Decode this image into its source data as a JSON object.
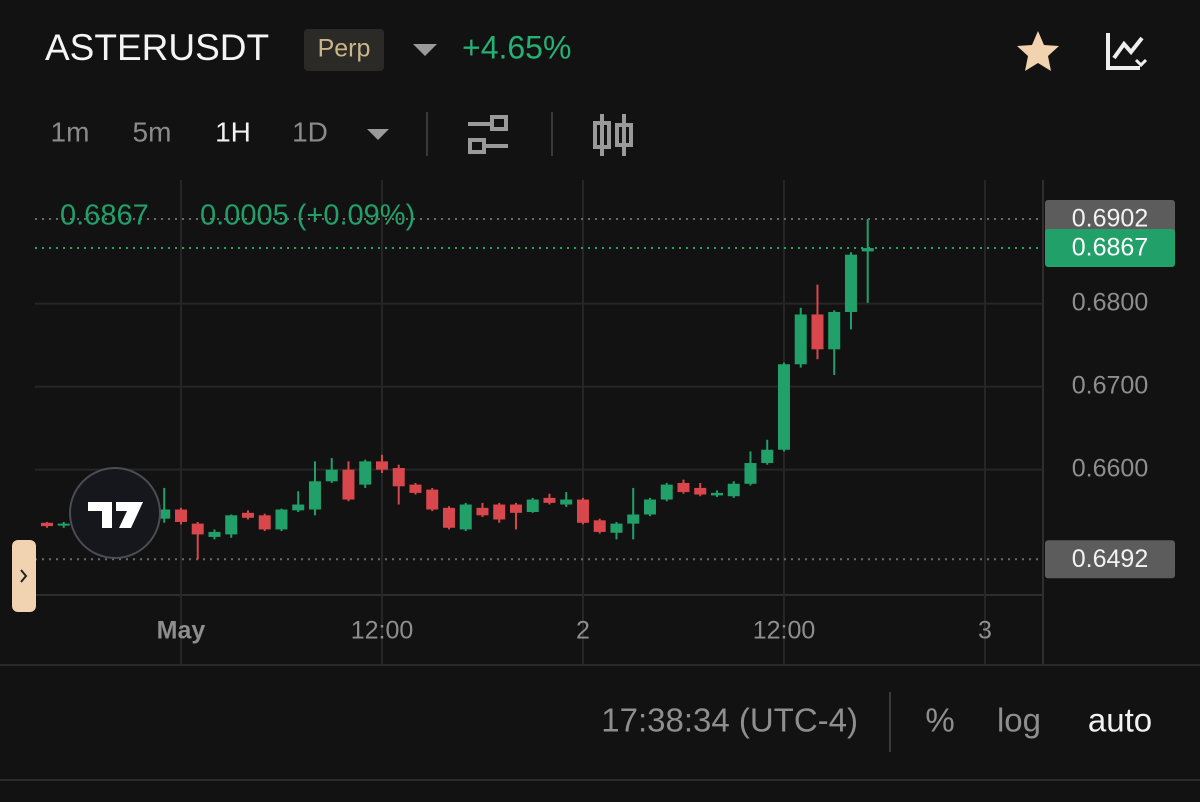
{
  "header": {
    "symbol": "ASTERUSDT",
    "badge": "Perp",
    "change": "+4.65%"
  },
  "intervals": [
    "1m",
    "5m",
    "1H",
    "1D"
  ],
  "chart_data": {
    "type": "candlestick",
    "legend_change": "0.0005 (+0.09%)",
    "categories": [
      null,
      null,
      null,
      null,
      null,
      null,
      null,
      null,
      "May",
      null,
      null,
      null,
      null,
      null,
      null,
      null,
      null,
      null,
      null,
      null,
      "12:00",
      null,
      null,
      null,
      null,
      null,
      null,
      null,
      null,
      null,
      null,
      null,
      "2",
      null,
      null,
      null,
      null,
      null,
      null,
      null,
      null,
      null,
      null,
      null,
      "12:00",
      null,
      null,
      null,
      null,
      null,
      null,
      null,
      null,
      null,
      null,
      null,
      "3",
      null,
      null,
      null
    ],
    "open": [
      0.6536,
      0.6534,
      0.6535,
      0.6538,
      0.654,
      0.6536,
      0.6538,
      0.6541,
      0.6552,
      0.6535,
      0.6519,
      0.6522,
      0.6548,
      0.6545,
      0.6528,
      0.6551,
      0.6552,
      0.6586,
      0.66,
      0.6582,
      0.661,
      0.6602,
      0.6582,
      0.6576,
      0.6554,
      0.6528,
      0.6554,
      0.6558,
      0.6558,
      0.6549,
      0.6566,
      0.6558,
      0.6564,
      0.6539,
      0.6524,
      0.6535,
      0.6546,
      0.6564,
      0.6584,
      0.6578,
      0.6569,
      0.6568,
      0.6583,
      0.6608,
      0.6624,
      0.6727,
      0.6787,
      0.6745,
      0.679,
      0.6863,
      null,
      null,
      null,
      null,
      null,
      null,
      null,
      null,
      null,
      null
    ],
    "high": [
      0.6537,
      0.6537,
      0.6541,
      0.6544,
      0.6543,
      0.6541,
      0.6545,
      0.6578,
      0.6554,
      0.6537,
      0.6528,
      0.6546,
      0.6551,
      0.6547,
      0.6553,
      0.6574,
      0.661,
      0.6614,
      0.661,
      0.6612,
      0.6618,
      0.6606,
      0.6584,
      0.6578,
      0.6556,
      0.656,
      0.656,
      0.656,
      0.656,
      0.6566,
      0.6571,
      0.6573,
      0.6566,
      0.6541,
      0.6537,
      0.6578,
      0.6566,
      0.6584,
      0.6588,
      0.6584,
      0.6575,
      0.6586,
      0.6622,
      0.6636,
      0.6729,
      0.6795,
      0.6823,
      0.6792,
      0.6862,
      0.6902,
      null,
      null,
      null,
      null,
      null,
      null,
      null,
      null,
      null,
      null
    ],
    "low": [
      0.653,
      0.653,
      0.6532,
      0.6535,
      0.6533,
      0.6532,
      0.6534,
      0.6536,
      0.6534,
      0.6492,
      0.6516,
      0.6518,
      0.654,
      0.6526,
      0.6526,
      0.6549,
      0.6545,
      0.6584,
      0.6562,
      0.6578,
      0.6596,
      0.6558,
      0.657,
      0.655,
      0.6528,
      0.6526,
      0.6543,
      0.6536,
      0.6528,
      0.6548,
      0.6558,
      0.6555,
      0.6534,
      0.6523,
      0.6516,
      0.6516,
      0.6544,
      0.6562,
      0.6571,
      0.6568,
      0.6567,
      0.6566,
      0.6581,
      0.6606,
      0.6622,
      0.6723,
      0.6733,
      0.6714,
      0.6769,
      0.6801,
      null,
      null,
      null,
      null,
      null,
      null,
      null,
      null,
      null,
      null
    ],
    "close": [
      0.6532,
      0.6535,
      0.6538,
      0.654,
      0.6536,
      0.6538,
      0.6541,
      0.6552,
      0.6537,
      0.6522,
      0.6525,
      0.6545,
      0.6542,
      0.6528,
      0.6552,
      0.6558,
      0.6586,
      0.66,
      0.6564,
      0.661,
      0.66,
      0.658,
      0.6572,
      0.6552,
      0.653,
      0.6558,
      0.6545,
      0.654,
      0.6548,
      0.6564,
      0.656,
      0.6564,
      0.6536,
      0.6525,
      0.6535,
      0.6546,
      0.6564,
      0.6582,
      0.6573,
      0.657,
      0.6572,
      0.6583,
      0.6608,
      0.6624,
      0.6727,
      0.6787,
      0.6745,
      0.679,
      0.6859,
      0.6867,
      null,
      null,
      null,
      null,
      null,
      null,
      null,
      null,
      null,
      null
    ],
    "up_color": "#21a06a",
    "down_color": "#d8474b",
    "ylim": [
      0.6449,
      0.6949
    ],
    "yticks": [
      {
        "value": 0.68,
        "label": "0.6800"
      },
      {
        "value": 0.67,
        "label": "0.6700"
      },
      {
        "value": 0.66,
        "label": "0.6600"
      }
    ],
    "high_marker": 0.6902,
    "last_marker": 0.6867,
    "low_marker": 0.6492,
    "grid": true
  },
  "footer": {
    "time": "17:38:34 (UTC-4)",
    "options": [
      "%",
      "log",
      "auto"
    ]
  }
}
